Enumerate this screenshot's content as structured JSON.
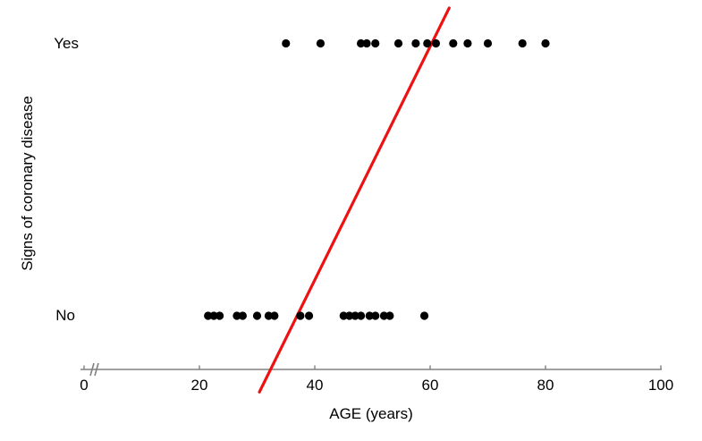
{
  "figure": {
    "background": "#ffffff"
  },
  "chart_data": {
    "type": "scatter",
    "title": "",
    "xlabel": "AGE (years)",
    "ylabel": "Signs of coronary disease",
    "categories": [
      "Yes",
      "No"
    ],
    "x_ticks": [
      0,
      20,
      40,
      60,
      80,
      100
    ],
    "xlim": [
      0,
      100
    ],
    "x_axis_break": true,
    "grid": false,
    "legend": false,
    "series": [
      {
        "name": "Yes",
        "outcome_value": 1,
        "ages": [
          35,
          41,
          48,
          49,
          50.5,
          54.5,
          57.5,
          59.5,
          61,
          64,
          66.5,
          70,
          76,
          80
        ]
      },
      {
        "name": "No",
        "outcome_value": 0,
        "ages": [
          21.5,
          22.5,
          23.5,
          26.5,
          27.5,
          30,
          32,
          33,
          37.5,
          39,
          45,
          46,
          47,
          48,
          49.5,
          50.5,
          52,
          53,
          59
        ]
      }
    ],
    "fit_line": {
      "type": "linear",
      "x1_age": 30.4,
      "p1": -0.28,
      "x2_age": 63.3,
      "p2": 1.13,
      "color": "#ee1111"
    },
    "point_color": "#000000",
    "axis_color": "#808080",
    "text_color": "#000000"
  }
}
